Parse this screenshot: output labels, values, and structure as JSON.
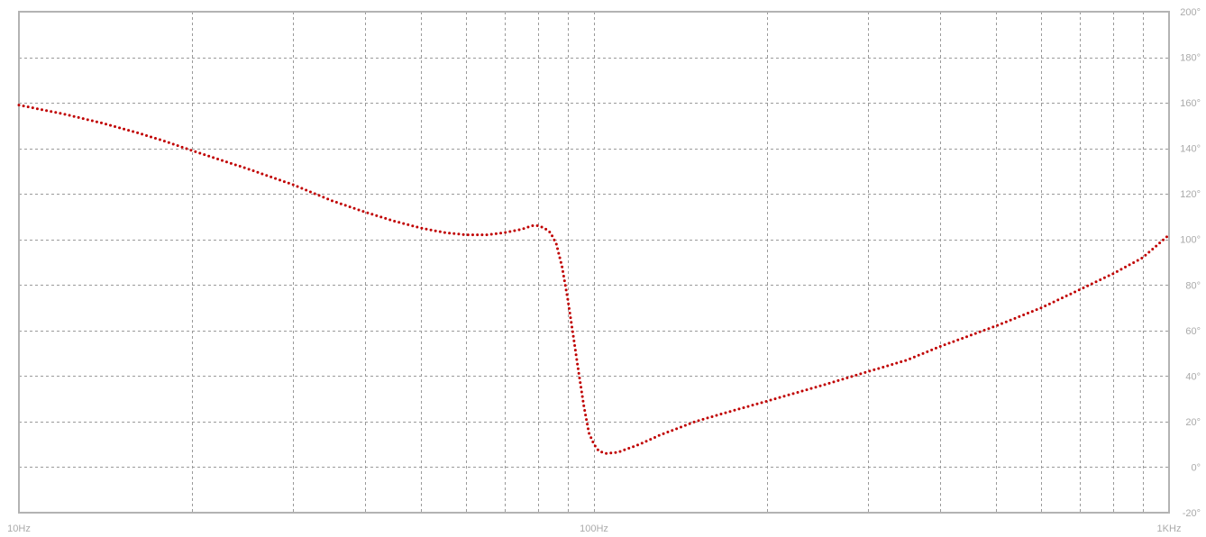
{
  "chart_data": {
    "type": "line",
    "title": "",
    "xlabel": "",
    "ylabel": "",
    "x_scale": "log",
    "xlim": [
      10,
      1000
    ],
    "ylim": [
      -20,
      200
    ],
    "grid": true,
    "line_style": "dotted",
    "x_tick_labels": [
      {
        "value": 10,
        "label": "10Hz"
      },
      {
        "value": 100,
        "label": "100Hz"
      },
      {
        "value": 1000,
        "label": "1KHz"
      }
    ],
    "x_minor_grid": [
      20,
      30,
      40,
      50,
      60,
      70,
      80,
      90,
      200,
      300,
      400,
      500,
      600,
      700,
      800,
      900
    ],
    "y_ticks": [
      {
        "value": 200,
        "label": "200°"
      },
      {
        "value": 180,
        "label": "180°"
      },
      {
        "value": 160,
        "label": "160°"
      },
      {
        "value": 140,
        "label": "140°"
      },
      {
        "value": 120,
        "label": "120°"
      },
      {
        "value": 100,
        "label": "100°"
      },
      {
        "value": 80,
        "label": "80°"
      },
      {
        "value": 60,
        "label": "60°"
      },
      {
        "value": 40,
        "label": "40°"
      },
      {
        "value": 20,
        "label": "20°"
      },
      {
        "value": 0,
        "label": "0°"
      },
      {
        "value": -20,
        "label": "-20°"
      }
    ],
    "series": [
      {
        "color": "#c00000",
        "points": [
          [
            10,
            159
          ],
          [
            12,
            155
          ],
          [
            14,
            151
          ],
          [
            16,
            147
          ],
          [
            18,
            143
          ],
          [
            20,
            139
          ],
          [
            25,
            131
          ],
          [
            30,
            124
          ],
          [
            35,
            117
          ],
          [
            40,
            112
          ],
          [
            45,
            108
          ],
          [
            50,
            105
          ],
          [
            55,
            103
          ],
          [
            60,
            102
          ],
          [
            65,
            102
          ],
          [
            70,
            103
          ],
          [
            75,
            104.5
          ],
          [
            78,
            106
          ],
          [
            80,
            106
          ],
          [
            82,
            105
          ],
          [
            84,
            103
          ],
          [
            86,
            98
          ],
          [
            88,
            88
          ],
          [
            90,
            74
          ],
          [
            92,
            58
          ],
          [
            94,
            42
          ],
          [
            96,
            27
          ],
          [
            98,
            15
          ],
          [
            100,
            10
          ],
          [
            102,
            7
          ],
          [
            105,
            6
          ],
          [
            110,
            6.5
          ],
          [
            120,
            10
          ],
          [
            130,
            14
          ],
          [
            150,
            20
          ],
          [
            170,
            24
          ],
          [
            200,
            29
          ],
          [
            250,
            36
          ],
          [
            300,
            42
          ],
          [
            350,
            47
          ],
          [
            400,
            53
          ],
          [
            500,
            62
          ],
          [
            600,
            70
          ],
          [
            700,
            78
          ],
          [
            800,
            85
          ],
          [
            900,
            92
          ],
          [
            1000,
            102
          ]
        ]
      }
    ]
  }
}
